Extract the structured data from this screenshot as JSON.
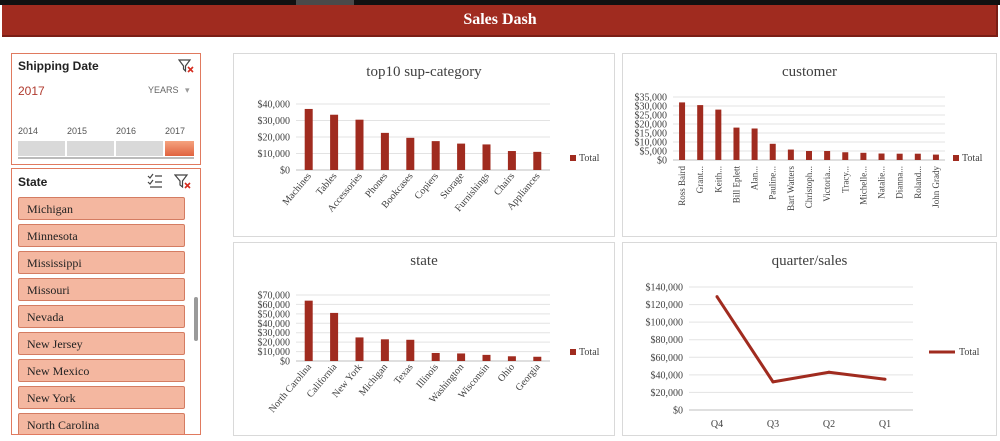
{
  "header": {
    "title": "Sales Dash"
  },
  "shipping_slicer": {
    "title": "Shipping Date",
    "selected_label": "2017",
    "level_label": "YEARS",
    "years": [
      "2014",
      "2015",
      "2016",
      "2017"
    ],
    "selected_year": "2017"
  },
  "state_slicer": {
    "title": "State",
    "items": [
      "Michigan",
      "Minnesota",
      "Mississippi",
      "Missouri",
      "Nevada",
      "New Jersey",
      "New Mexico",
      "New York",
      "North Carolina"
    ]
  },
  "colors": {
    "accent": "#a02b1f",
    "bar": "#a02b1f",
    "slicer_item": "#f4b7a0"
  },
  "chart_data": [
    {
      "id": "subcategory",
      "type": "bar",
      "title": "top10 sup-category",
      "categories": [
        "Machines",
        "Tables",
        "Accessories",
        "Phones",
        "Bookcases",
        "Copiers",
        "Storage",
        "Furnishings",
        "Chairs",
        "Appliances"
      ],
      "series": [
        {
          "name": "Total",
          "values": [
            37000,
            33500,
            30500,
            22500,
            19500,
            17500,
            16000,
            15500,
            11500,
            11000
          ]
        }
      ],
      "ylim": [
        0,
        40000
      ],
      "ticks": [
        0,
        10000,
        20000,
        30000,
        40000
      ],
      "tick_labels": [
        "$0",
        "$10,000",
        "$20,000",
        "$30,000",
        "$40,000"
      ],
      "legend": "right"
    },
    {
      "id": "customer",
      "type": "bar",
      "title": "customer",
      "categories": [
        "Ross Baird",
        "Grant...",
        "Keith...",
        "Bill Eplett",
        "Alan...",
        "Pauline...",
        "Bart Watters",
        "Christoph...",
        "Victoria...",
        "Tracy...",
        "Michelle...",
        "Natalie...",
        "Dianna...",
        "Roland...",
        "John Grady"
      ],
      "series": [
        {
          "name": "Total",
          "values": [
            32000,
            30500,
            28000,
            18000,
            17500,
            9000,
            5800,
            5000,
            5000,
            4300,
            4000,
            3600,
            3500,
            3500,
            3000
          ]
        }
      ],
      "ylim": [
        0,
        35000
      ],
      "ticks": [
        0,
        5000,
        10000,
        15000,
        20000,
        25000,
        30000,
        35000
      ],
      "tick_labels": [
        "$0",
        "$5,000",
        "$10,000",
        "$15,000",
        "$20,000",
        "$25,000",
        "$30,000",
        "$35,000"
      ],
      "legend": "right"
    },
    {
      "id": "state",
      "type": "bar",
      "title": "state",
      "categories": [
        "North Carolina",
        "California",
        "New York",
        "Michigan",
        "Texas",
        "Illinois",
        "Washington",
        "Wisconsin",
        "Ohio",
        "Georgia"
      ],
      "series": [
        {
          "name": "Total",
          "values": [
            64000,
            51000,
            25000,
            23000,
            22500,
            8500,
            8000,
            6500,
            5000,
            4500
          ]
        }
      ],
      "ylim": [
        0,
        70000
      ],
      "ticks": [
        0,
        10000,
        20000,
        30000,
        40000,
        50000,
        60000,
        70000
      ],
      "tick_labels": [
        "$0",
        "$10,000",
        "$20,000",
        "$30,000",
        "$40,000",
        "$50,000",
        "$60,000",
        "$70,000"
      ],
      "legend": "right"
    },
    {
      "id": "quarter",
      "type": "line",
      "title": "quarter/sales",
      "categories": [
        "Q4",
        "Q3",
        "Q2",
        "Q1"
      ],
      "series": [
        {
          "name": "Total",
          "values": [
            129000,
            32000,
            43000,
            35000
          ]
        }
      ],
      "ylim": [
        0,
        140000
      ],
      "ticks": [
        0,
        20000,
        40000,
        60000,
        80000,
        100000,
        120000,
        140000
      ],
      "tick_labels": [
        "$0",
        "$20,000",
        "$40,000",
        "$60,000",
        "$80,000",
        "$100,000",
        "$120,000",
        "$140,000"
      ],
      "legend": "right"
    }
  ]
}
